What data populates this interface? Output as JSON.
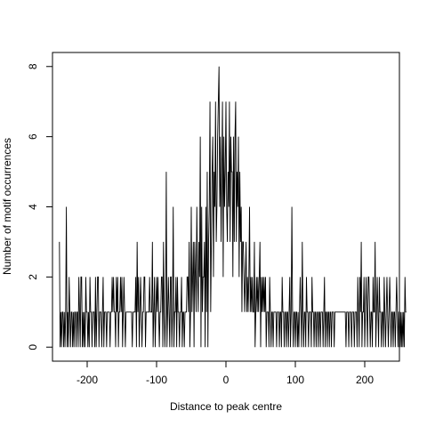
{
  "chart_data": {
    "type": "line",
    "title": "",
    "xlabel": "Distance to peak centre",
    "ylabel": "Number of motif occurrences",
    "xlim": [
      -250,
      250
    ],
    "ylim": [
      -0.4,
      8.4
    ],
    "xticks": [
      -200,
      -100,
      0,
      100,
      200
    ],
    "xtick_labels": [
      "-200",
      "-100",
      "0",
      "100",
      "200"
    ],
    "yticks": [
      0,
      2,
      4,
      6,
      8
    ],
    "ytick_labels": [
      "0",
      "2",
      "4",
      "6",
      "8"
    ],
    "grid": false,
    "legend": "none",
    "line_color": "#000000",
    "series": [
      {
        "x_start": -240,
        "x_step": 1,
        "values": [
          3,
          0,
          1,
          0,
          1,
          1,
          0,
          1,
          0,
          1,
          4,
          0,
          1,
          0,
          2,
          1,
          0,
          1,
          1,
          0,
          1,
          0,
          1,
          1,
          0,
          1,
          1,
          0,
          2,
          1,
          0,
          2,
          2,
          0,
          1,
          0,
          1,
          0,
          2,
          1,
          1,
          0,
          1,
          0,
          2,
          1,
          1,
          0,
          1,
          1,
          1,
          0,
          2,
          0,
          1,
          2,
          2,
          0,
          1,
          1,
          1,
          0,
          1,
          2,
          0,
          1,
          1,
          1,
          0,
          1,
          1,
          1,
          1,
          0,
          1,
          1,
          2,
          1,
          2,
          1,
          1,
          0,
          2,
          1,
          2,
          0,
          1,
          1,
          2,
          1,
          2,
          0,
          1,
          2,
          1,
          0,
          1,
          1,
          1,
          1,
          1,
          1,
          1,
          1,
          1,
          0,
          1,
          1,
          1,
          1,
          2,
          0,
          3,
          1,
          2,
          0,
          1,
          2,
          1,
          0,
          1,
          1,
          2,
          2,
          0,
          1,
          1,
          1,
          1,
          1,
          2,
          1,
          1,
          1,
          3,
          0,
          1,
          2,
          0,
          1,
          2,
          1,
          2,
          1,
          0,
          1,
          1,
          2,
          2,
          0,
          3,
          1,
          0,
          1,
          5,
          0,
          1,
          2,
          1,
          0,
          2,
          2,
          0,
          1,
          4,
          0,
          1,
          1,
          2,
          0,
          2,
          1,
          1,
          0,
          1,
          1,
          2,
          0,
          1,
          1,
          0,
          1,
          1,
          1,
          2,
          2,
          1,
          3,
          0,
          1,
          4,
          1,
          2,
          3,
          0,
          3,
          2,
          1,
          4,
          2,
          1,
          3,
          2,
          6,
          0,
          4,
          1,
          2,
          2,
          3,
          0,
          4,
          1,
          5,
          0,
          3,
          4,
          7,
          1,
          3,
          5,
          6,
          2,
          5,
          4,
          7,
          3,
          4,
          6,
          7,
          8,
          4,
          6,
          3,
          5,
          7,
          2,
          6,
          4,
          5,
          7,
          4,
          3,
          5,
          4,
          7,
          3,
          6,
          5,
          5,
          2,
          6,
          3,
          6,
          7,
          3,
          5,
          4,
          6,
          2,
          5,
          3,
          4,
          1,
          3,
          3,
          2,
          1,
          2,
          3,
          1,
          2,
          1,
          2,
          4,
          1,
          2,
          1,
          2,
          1,
          1,
          3,
          0,
          1,
          2,
          1,
          2,
          1,
          2,
          3,
          0,
          2,
          1,
          2,
          1,
          2,
          1,
          2,
          0,
          1,
          1,
          1,
          0,
          2,
          1,
          0,
          1,
          1,
          0,
          1,
          1,
          1,
          1,
          0,
          1,
          1,
          1,
          0,
          1,
          1,
          0,
          2,
          1,
          1,
          0,
          1,
          1,
          0,
          1,
          1,
          0,
          1,
          2,
          0,
          1,
          4,
          1,
          0,
          1,
          1,
          0,
          1,
          1,
          0,
          1,
          0,
          1,
          2,
          1,
          0,
          3,
          1,
          0,
          1,
          1,
          0,
          2,
          1,
          1,
          0,
          1,
          1,
          1,
          0,
          2,
          1,
          1,
          0,
          1,
          1,
          0,
          1,
          1,
          0,
          1,
          1,
          0,
          1,
          1,
          1,
          0,
          1,
          2,
          0,
          1,
          1,
          0,
          1,
          1,
          0,
          1,
          1,
          0,
          1,
          1,
          1,
          0,
          1,
          1,
          1,
          1,
          1,
          1,
          1,
          1,
          1,
          1,
          1,
          1,
          1,
          1,
          1,
          1,
          0,
          1,
          1,
          1,
          0,
          1,
          1,
          1,
          0,
          1,
          1,
          1,
          0,
          1,
          1,
          1,
          0,
          2,
          1,
          0,
          2,
          1,
          3,
          0,
          1,
          1,
          2,
          0,
          1,
          2,
          1,
          0,
          2,
          2,
          1,
          0,
          1,
          1,
          0,
          2,
          1,
          1,
          3,
          0,
          1,
          2,
          1,
          0,
          2,
          1,
          1,
          0,
          1,
          1,
          0,
          2,
          1,
          0,
          1,
          2,
          1,
          0,
          1,
          2,
          1,
          0,
          1,
          1,
          0,
          1,
          1,
          0,
          1,
          2,
          1,
          0,
          1,
          1,
          0,
          1,
          0,
          1,
          0,
          1,
          0,
          2,
          1,
          1
        ]
      }
    ]
  }
}
